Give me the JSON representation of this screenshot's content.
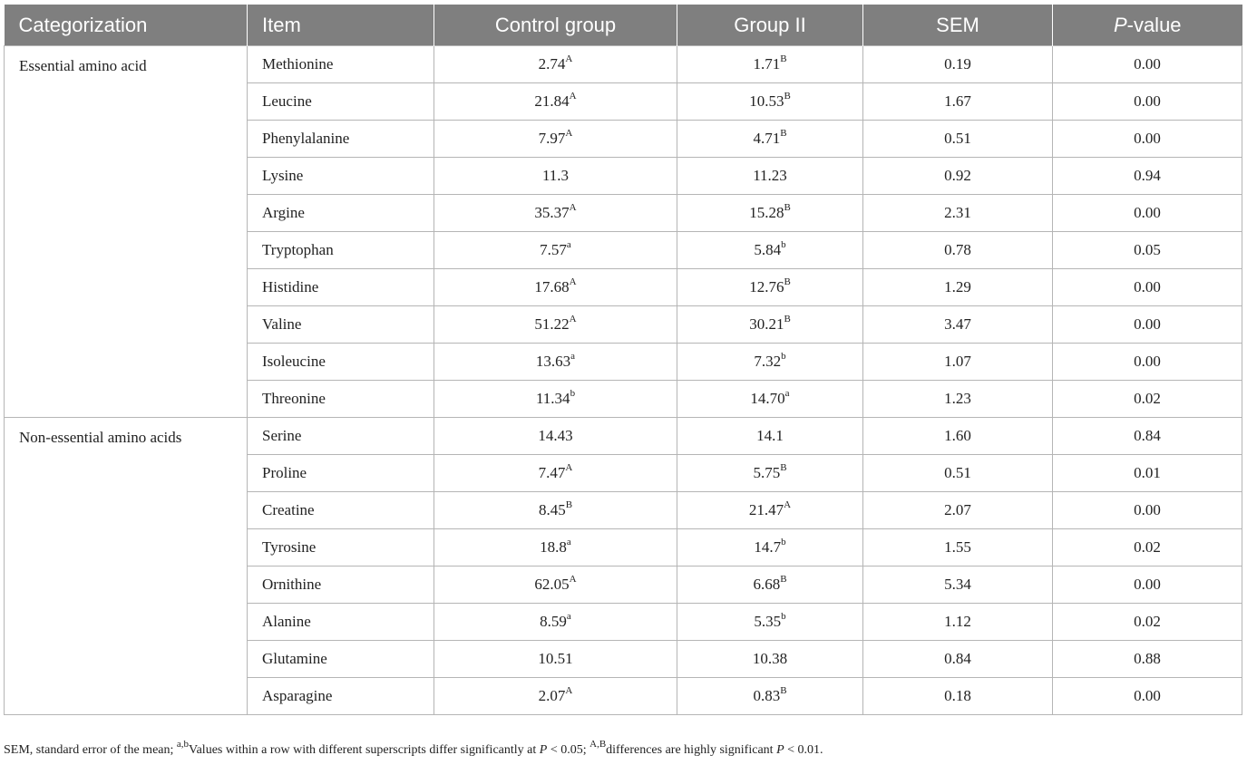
{
  "headers": {
    "categorization": "Categorization",
    "item": "Item",
    "control": "Control group",
    "group2": "Group II",
    "sem": "SEM",
    "p_prefix": "P",
    "p_suffix": "-value"
  },
  "groups": [
    {
      "category": "Essential amino acid",
      "rows": [
        {
          "item": "Methionine",
          "control": "2.74",
          "control_sup": "A",
          "group2": "1.71",
          "group2_sup": "B",
          "sem": "0.19",
          "p": "0.00"
        },
        {
          "item": "Leucine",
          "control": "21.84",
          "control_sup": "A",
          "group2": "10.53",
          "group2_sup": "B",
          "sem": "1.67",
          "p": "0.00"
        },
        {
          "item": "Phenylalanine",
          "control": "7.97",
          "control_sup": "A",
          "group2": "4.71",
          "group2_sup": "B",
          "sem": "0.51",
          "p": "0.00"
        },
        {
          "item": "Lysine",
          "control": "11.3",
          "control_sup": "",
          "group2": "11.23",
          "group2_sup": "",
          "sem": "0.92",
          "p": "0.94"
        },
        {
          "item": "Argine",
          "control": "35.37",
          "control_sup": "A",
          "group2": "15.28",
          "group2_sup": "B",
          "sem": "2.31",
          "p": "0.00"
        },
        {
          "item": "Tryptophan",
          "control": "7.57",
          "control_sup": "a",
          "group2": "5.84",
          "group2_sup": "b",
          "sem": "0.78",
          "p": "0.05"
        },
        {
          "item": "Histidine",
          "control": "17.68",
          "control_sup": "A",
          "group2": "12.76",
          "group2_sup": "B",
          "sem": "1.29",
          "p": "0.00"
        },
        {
          "item": "Valine",
          "control": "51.22",
          "control_sup": "A",
          "group2": "30.21",
          "group2_sup": "B",
          "sem": "3.47",
          "p": "0.00"
        },
        {
          "item": "Isoleucine",
          "control": "13.63",
          "control_sup": "a",
          "group2": "7.32",
          "group2_sup": "b",
          "sem": "1.07",
          "p": "0.00"
        },
        {
          "item": "Threonine",
          "control": "11.34",
          "control_sup": "b",
          "group2": "14.70",
          "group2_sup": "a",
          "sem": "1.23",
          "p": "0.02"
        }
      ]
    },
    {
      "category": "Non-essential amino acids",
      "rows": [
        {
          "item": "Serine",
          "control": "14.43",
          "control_sup": "",
          "group2": "14.1",
          "group2_sup": "",
          "sem": "1.60",
          "p": "0.84"
        },
        {
          "item": "Proline",
          "control": "7.47",
          "control_sup": "A",
          "group2": "5.75",
          "group2_sup": "B",
          "sem": "0.51",
          "p": "0.01"
        },
        {
          "item": "Creatine",
          "control": "8.45",
          "control_sup": "B",
          "group2": "21.47",
          "group2_sup": "A",
          "sem": "2.07",
          "p": "0.00"
        },
        {
          "item": "Tyrosine",
          "control": "18.8",
          "control_sup": "a",
          "group2": "14.7",
          "group2_sup": "b",
          "sem": "1.55",
          "p": "0.02"
        },
        {
          "item": "Ornithine",
          "control": "62.05",
          "control_sup": "A",
          "group2": "6.68",
          "group2_sup": "B",
          "sem": "5.34",
          "p": "0.00"
        },
        {
          "item": "Alanine",
          "control": "8.59",
          "control_sup": "a",
          "group2": "5.35",
          "group2_sup": "b",
          "sem": "1.12",
          "p": "0.02"
        },
        {
          "item": "Glutamine",
          "control": "10.51",
          "control_sup": "",
          "group2": "10.38",
          "group2_sup": "",
          "sem": "0.84",
          "p": "0.88"
        },
        {
          "item": "Asparagine",
          "control": "2.07",
          "control_sup": "A",
          "group2": "0.83",
          "group2_sup": "B",
          "sem": "0.18",
          "p": "0.00"
        }
      ]
    }
  ],
  "footnote": {
    "part1": "SEM, standard error of the mean; ",
    "sup1": "a,b",
    "part2": "Values within a row with different superscripts differ significantly at ",
    "p1": "P",
    "part3": " < 0.05; ",
    "sup2": "A,B",
    "part4": "differences are highly significant ",
    "p2": "P",
    "part5": " < 0.01."
  },
  "colors": {
    "header_bg": "#7f7f7f",
    "header_text": "#ffffff",
    "border": "#b5b5b5"
  }
}
